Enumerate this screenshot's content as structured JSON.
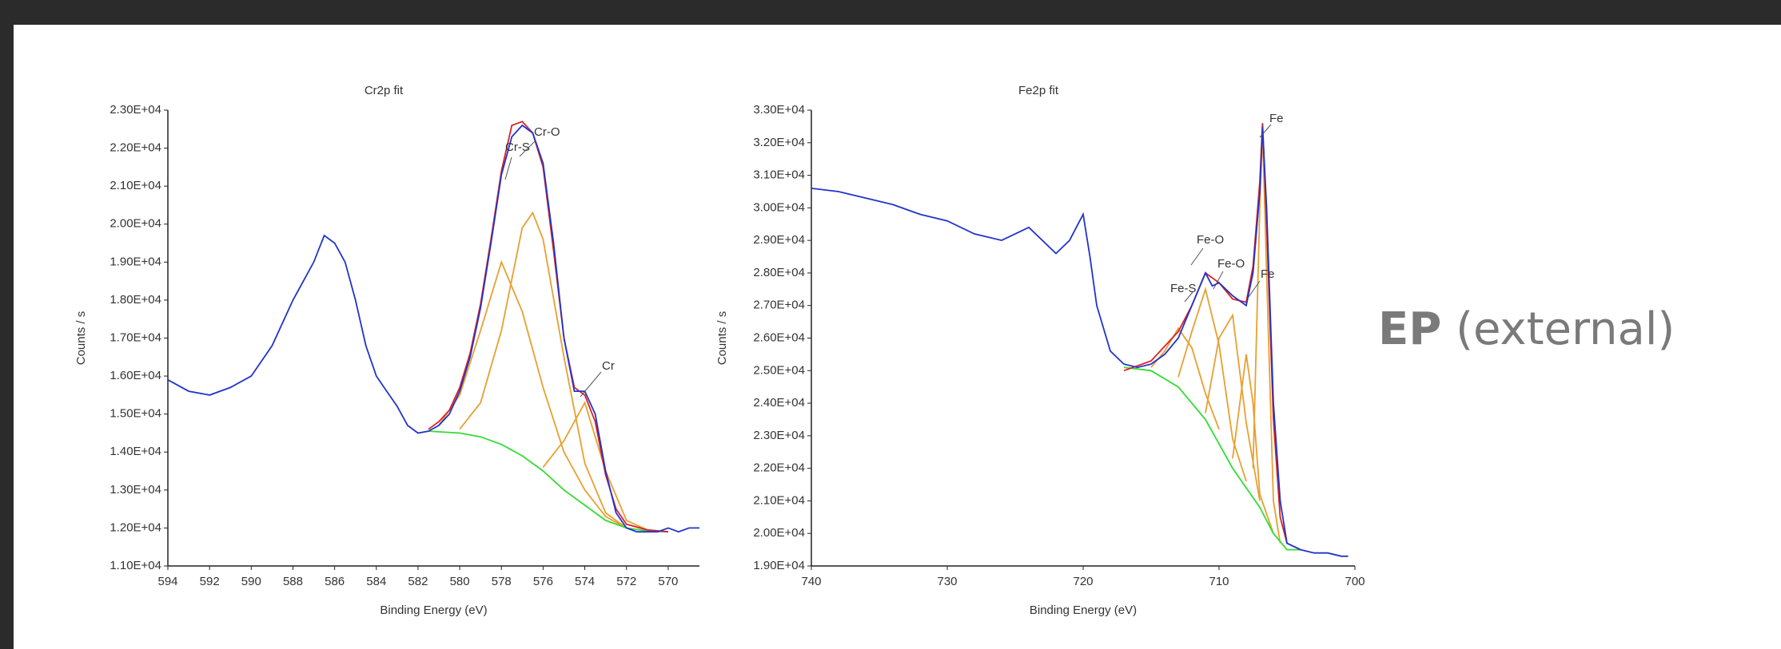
{
  "chart_data": [
    {
      "type": "line",
      "title": "Cr2p fit",
      "xlabel": "Binding Energy (eV)",
      "ylabel": "Counts / s",
      "xlim": [
        594,
        568.5
      ],
      "ylim": [
        11000,
        23000
      ],
      "xticks": [
        594,
        592,
        590,
        588,
        586,
        584,
        582,
        580,
        578,
        576,
        574,
        572,
        570
      ],
      "yticks": [
        {
          "value": 11000,
          "label": "1.10E+04"
        },
        {
          "value": 12000,
          "label": "1.20E+04"
        },
        {
          "value": 13000,
          "label": "1.30E+04"
        },
        {
          "value": 14000,
          "label": "1.40E+04"
        },
        {
          "value": 15000,
          "label": "1.50E+04"
        },
        {
          "value": 16000,
          "label": "1.60E+04"
        },
        {
          "value": 17000,
          "label": "1.70E+04"
        },
        {
          "value": 18000,
          "label": "1.80E+04"
        },
        {
          "value": 19000,
          "label": "1.90E+04"
        },
        {
          "value": 20000,
          "label": "2.00E+04"
        },
        {
          "value": 21000,
          "label": "2.10E+04"
        },
        {
          "value": 22000,
          "label": "2.20E+04"
        },
        {
          "value": 23000,
          "label": "2.30E+04"
        }
      ],
      "annotations": [
        "Cr-S",
        "Cr-O",
        "Cr"
      ],
      "series": [
        {
          "color": "#e8a030",
          "x": [
            581,
            580,
            579,
            578,
            577,
            576,
            575,
            574,
            573,
            572
          ],
          "values": [
            14700,
            15500,
            17200,
            19000,
            17700,
            15700,
            14000,
            13000,
            12300,
            12000
          ]
        },
        {
          "color": "#e8a030",
          "x": [
            580,
            579,
            578,
            577,
            576.5,
            576,
            575,
            574,
            573,
            572
          ],
          "values": [
            14600,
            15300,
            17200,
            19900,
            20300,
            19600,
            16500,
            13700,
            12400,
            12000
          ]
        },
        {
          "color": "#e8a030",
          "x": [
            576,
            575,
            574,
            573,
            572,
            571
          ],
          "values": [
            13600,
            14300,
            15300,
            13500,
            12200,
            11950
          ]
        },
        {
          "color": "#33dd33",
          "x": [
            581.5,
            580,
            579,
            578,
            577,
            576,
            575,
            574,
            573,
            572,
            571,
            570
          ],
          "values": [
            14550,
            14500,
            14400,
            14200,
            13900,
            13500,
            13000,
            12600,
            12200,
            12000,
            11920,
            11900
          ]
        },
        {
          "color": "#dd2222",
          "x": [
            581.5,
            581,
            580.5,
            580,
            579.5,
            579,
            578.5,
            578,
            577.5,
            577,
            576.5,
            576,
            575.5,
            575,
            574.5,
            574,
            573.5,
            573,
            572.5,
            572,
            571,
            570
          ],
          "values": [
            14600,
            14800,
            15100,
            15700,
            16600,
            17900,
            19600,
            21400,
            22600,
            22700,
            22400,
            21500,
            19300,
            17000,
            15700,
            15500,
            14800,
            13400,
            12500,
            12100,
            11950,
            11900
          ]
        },
        {
          "color": "#2233cc",
          "x": [
            594,
            593,
            592,
            591,
            590,
            589,
            588,
            587,
            586.5,
            586,
            585.5,
            585,
            584.5,
            584,
            583.5,
            583,
            582.5,
            582,
            581.5,
            581,
            580.5,
            580,
            579.5,
            579,
            578.5,
            578,
            577.5,
            577,
            576.5,
            576,
            575.5,
            575,
            574.5,
            574,
            573.5,
            573,
            572.5,
            572,
            571.5,
            571,
            570.5,
            570,
            569.5,
            569,
            568.5
          ],
          "values": [
            15900,
            15600,
            15500,
            15700,
            16000,
            16800,
            18000,
            19000,
            19700,
            19500,
            19000,
            18000,
            16800,
            16000,
            15600,
            15200,
            14700,
            14500,
            14550,
            14700,
            15000,
            15600,
            16500,
            17800,
            19500,
            21300,
            22300,
            22600,
            22400,
            21600,
            19500,
            17000,
            15600,
            15600,
            15000,
            13500,
            12400,
            12000,
            11900,
            11900,
            11900,
            12000,
            11900,
            12000,
            12000
          ]
        }
      ]
    },
    {
      "type": "line",
      "title": "Fe2p fit",
      "xlabel": "Binding Energy (eV)",
      "ylabel": "Counts / s",
      "xlim": [
        740,
        700
      ],
      "ylim": [
        19000,
        33000
      ],
      "xticks": [
        740,
        730,
        720,
        710,
        700
      ],
      "yticks": [
        {
          "value": 19000,
          "label": "1.90E+04"
        },
        {
          "value": 20000,
          "label": "2.00E+04"
        },
        {
          "value": 21000,
          "label": "2.10E+04"
        },
        {
          "value": 22000,
          "label": "2.20E+04"
        },
        {
          "value": 23000,
          "label": "2.30E+04"
        },
        {
          "value": 24000,
          "label": "2.40E+04"
        },
        {
          "value": 25000,
          "label": "2.50E+04"
        },
        {
          "value": 26000,
          "label": "2.60E+04"
        },
        {
          "value": 27000,
          "label": "2.70E+04"
        },
        {
          "value": 28000,
          "label": "2.80E+04"
        },
        {
          "value": 29000,
          "label": "2.90E+04"
        },
        {
          "value": 30000,
          "label": "3.00E+04"
        },
        {
          "value": 31000,
          "label": "3.10E+04"
        },
        {
          "value": 32000,
          "label": "3.20E+04"
        },
        {
          "value": 33000,
          "label": "3.30E+04"
        }
      ],
      "annotations": [
        "Fe",
        "Fe-O",
        "Fe-S",
        "Fe-O",
        "Fe"
      ],
      "series": [
        {
          "color": "#e8a030",
          "x": [
            715,
            714,
            713,
            712,
            711,
            710
          ],
          "values": [
            25100,
            25600,
            26300,
            25700,
            24300,
            23200
          ]
        },
        {
          "color": "#e8a030",
          "x": [
            713,
            712,
            711,
            710,
            709,
            708
          ],
          "values": [
            24800,
            26200,
            27500,
            25800,
            22900,
            21600
          ]
        },
        {
          "color": "#e8a030",
          "x": [
            711,
            710,
            709,
            708,
            707
          ],
          "values": [
            23700,
            26000,
            26700,
            23400,
            21000
          ]
        },
        {
          "color": "#e8a030",
          "x": [
            709,
            708,
            707.5,
            707,
            706
          ],
          "values": [
            22300,
            25500,
            24000,
            21200,
            20000
          ]
        },
        {
          "color": "#e8a030",
          "x": [
            707.5,
            707,
            706.8,
            706.5,
            706,
            705.5
          ],
          "values": [
            22000,
            30000,
            32400,
            28000,
            21000,
            19700
          ]
        },
        {
          "color": "#33dd33",
          "x": [
            717,
            715,
            713,
            711,
            709,
            707,
            706,
            705,
            704
          ],
          "values": [
            25100,
            25000,
            24500,
            23500,
            22000,
            20800,
            20000,
            19500,
            19500
          ]
        },
        {
          "color": "#dd2222",
          "x": [
            717,
            715,
            713,
            712,
            711,
            710,
            709,
            708,
            707.5,
            707,
            706.8,
            706.5,
            706,
            705.5,
            705,
            704
          ],
          "values": [
            25000,
            25300,
            26200,
            27000,
            28000,
            27700,
            27200,
            27100,
            28200,
            30800,
            32600,
            29500,
            23500,
            20500,
            19700,
            19500
          ]
        },
        {
          "color": "#2233cc",
          "x": [
            740,
            738,
            736,
            734,
            732,
            730,
            728,
            726,
            724,
            722,
            721,
            720,
            719.5,
            719,
            718,
            717,
            716,
            715,
            714,
            713,
            712,
            711,
            710.5,
            710,
            709,
            708,
            707.5,
            707,
            706.8,
            706.5,
            706,
            705.5,
            705,
            704,
            703,
            702,
            701,
            700.5
          ],
          "values": [
            30600,
            30500,
            30300,
            30100,
            29800,
            29600,
            29200,
            29000,
            29400,
            28600,
            29000,
            29800,
            28500,
            27000,
            25600,
            25200,
            25100,
            25200,
            25500,
            26000,
            27000,
            28000,
            27600,
            27700,
            27300,
            27000,
            28000,
            30500,
            32500,
            30000,
            24000,
            21000,
            19700,
            19500,
            19400,
            19400,
            19300,
            19300
          ]
        }
      ]
    }
  ],
  "side_label": {
    "bold": "EP",
    "rest": "(external)"
  }
}
